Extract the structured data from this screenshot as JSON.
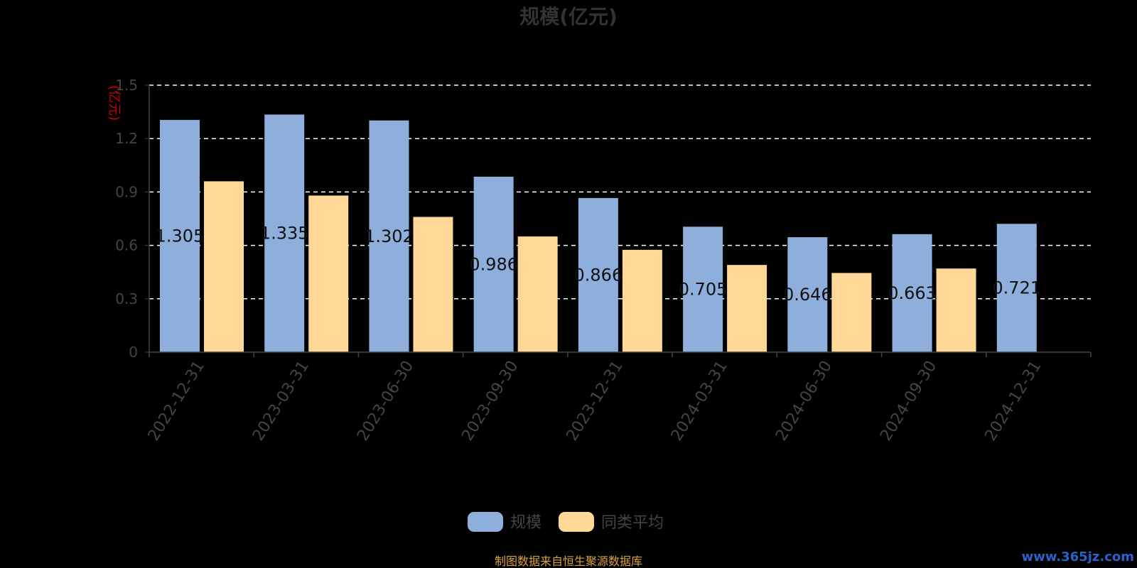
{
  "chart_data": {
    "type": "bar",
    "title": "规模(亿元)",
    "ylabel": "(亿元)",
    "categories": [
      "2022-12-31",
      "2023-03-31",
      "2023-06-30",
      "2023-09-30",
      "2023-12-31",
      "2024-03-31",
      "2024-06-30",
      "2024-09-30",
      "2024-12-31"
    ],
    "series": [
      {
        "name": "规模",
        "color": "#8eaedb",
        "values": [
          1.305,
          1.335,
          1.302,
          0.986,
          0.866,
          0.705,
          0.646,
          0.663,
          0.721
        ],
        "labels": [
          "1.305",
          "1.335",
          "1.302",
          "0.986",
          "0.866",
          "0.705",
          "0.646",
          "0.663",
          "0.721"
        ]
      },
      {
        "name": "同类平均",
        "color": "#ffd897",
        "values": [
          0.96,
          0.88,
          0.76,
          0.65,
          0.575,
          0.49,
          0.445,
          0.47,
          null
        ]
      }
    ],
    "ylim": [
      0,
      1.5
    ],
    "yticks": [
      0,
      0.3,
      0.6,
      0.9,
      1.2,
      1.5
    ],
    "ytick_labels": [
      "0",
      "0.3",
      "0.6",
      "0.9",
      "1.2",
      "1.5"
    ],
    "grid": true,
    "legend_position": "bottom-center"
  },
  "footer": {
    "source": "制图数据来自恒生聚源数据库",
    "watermark": "www.365jz.com"
  }
}
